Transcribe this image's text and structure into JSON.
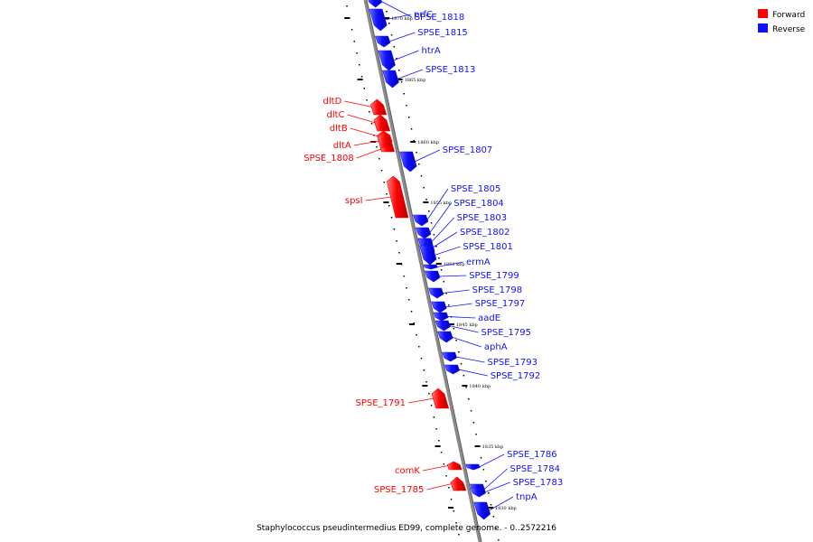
{
  "caption": "Staphylococcus pseudintermedius ED99, complete genome. - 0..2572216",
  "legend": [
    {
      "label": "Forward",
      "color": "#ff0000"
    },
    {
      "label": "Reverse",
      "color": "#1010ff"
    }
  ],
  "colors": {
    "forward": "#ff0000",
    "reverse": "#1010ff",
    "backbone": "#8a8a8a"
  },
  "ticks": [
    {
      "label": "1870 kbp",
      "pos": 1870
    },
    {
      "label": "1865 kbp",
      "pos": 1865
    },
    {
      "label": "1860 kbp",
      "pos": 1860
    },
    {
      "label": "1855 kbp",
      "pos": 1855
    },
    {
      "label": "1850 kbp",
      "pos": 1850
    },
    {
      "label": "1845 kbp",
      "pos": 1845
    },
    {
      "label": "1840 kbp",
      "pos": 1840
    },
    {
      "label": "1835 kbp",
      "pos": 1835
    },
    {
      "label": "1830 kbp",
      "pos": 1830
    }
  ],
  "genes": [
    {
      "name": "SPSE_1818",
      "strand": "reverse"
    },
    {
      "name": "prfC",
      "strand": "reverse"
    },
    {
      "name": "SPSE_1815",
      "strand": "reverse"
    },
    {
      "name": "htrA",
      "strand": "reverse"
    },
    {
      "name": "SPSE_1813",
      "strand": "reverse"
    },
    {
      "name": "dltD",
      "strand": "forward"
    },
    {
      "name": "dltC",
      "strand": "forward"
    },
    {
      "name": "dltB",
      "strand": "forward"
    },
    {
      "name": "dltA",
      "strand": "forward"
    },
    {
      "name": "SPSE_1808",
      "strand": "forward"
    },
    {
      "name": "SPSE_1807",
      "strand": "reverse"
    },
    {
      "name": "spsI",
      "strand": "forward"
    },
    {
      "name": "SPSE_1805",
      "strand": "reverse"
    },
    {
      "name": "SPSE_1804",
      "strand": "reverse"
    },
    {
      "name": "SPSE_1803",
      "strand": "reverse"
    },
    {
      "name": "SPSE_1802",
      "strand": "reverse"
    },
    {
      "name": "SPSE_1801",
      "strand": "reverse"
    },
    {
      "name": "ermA",
      "strand": "reverse"
    },
    {
      "name": "SPSE_1799",
      "strand": "reverse"
    },
    {
      "name": "SPSE_1798",
      "strand": "reverse"
    },
    {
      "name": "SPSE_1797",
      "strand": "reverse"
    },
    {
      "name": "aadE",
      "strand": "reverse"
    },
    {
      "name": "SPSE_1795",
      "strand": "reverse"
    },
    {
      "name": "aphA",
      "strand": "reverse"
    },
    {
      "name": "SPSE_1793",
      "strand": "reverse"
    },
    {
      "name": "SPSE_1792",
      "strand": "reverse"
    },
    {
      "name": "SPSE_1791",
      "strand": "forward"
    },
    {
      "name": "SPSE_1786",
      "strand": "reverse"
    },
    {
      "name": "comK",
      "strand": "forward"
    },
    {
      "name": "SPSE_1784",
      "strand": "reverse"
    },
    {
      "name": "SPSE_1783",
      "strand": "reverse"
    },
    {
      "name": "SPSE_1785",
      "strand": "forward"
    },
    {
      "name": "tnpA",
      "strand": "reverse"
    }
  ]
}
